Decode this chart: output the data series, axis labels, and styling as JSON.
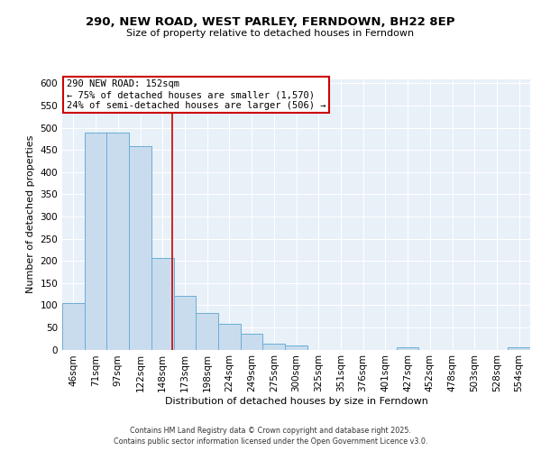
{
  "title": "290, NEW ROAD, WEST PARLEY, FERNDOWN, BH22 8EP",
  "subtitle": "Size of property relative to detached houses in Ferndown",
  "xlabel": "Distribution of detached houses by size in Ferndown",
  "ylabel": "Number of detached properties",
  "categories": [
    "46sqm",
    "71sqm",
    "97sqm",
    "122sqm",
    "148sqm",
    "173sqm",
    "198sqm",
    "224sqm",
    "249sqm",
    "275sqm",
    "300sqm",
    "325sqm",
    "351sqm",
    "376sqm",
    "401sqm",
    "427sqm",
    "452sqm",
    "478sqm",
    "503sqm",
    "528sqm",
    "554sqm"
  ],
  "values": [
    105,
    490,
    490,
    458,
    207,
    122,
    82,
    58,
    36,
    14,
    10,
    0,
    0,
    0,
    0,
    5,
    0,
    0,
    0,
    0,
    5
  ],
  "bar_color": "#c9dcee",
  "bar_edge_color": "#6aaed6",
  "vline_x": 4.45,
  "vline_color": "#cc0000",
  "annotation_text": "290 NEW ROAD: 152sqm\n← 75% of detached houses are smaller (1,570)\n24% of semi-detached houses are larger (506) →",
  "annotation_box_color": "#ffffff",
  "annotation_box_edge_color": "#cc0000",
  "ylim": [
    0,
    610
  ],
  "yticks": [
    0,
    50,
    100,
    150,
    200,
    250,
    300,
    350,
    400,
    450,
    500,
    550,
    600
  ],
  "footer_line1": "Contains HM Land Registry data © Crown copyright and database right 2025.",
  "footer_line2": "Contains public sector information licensed under the Open Government Licence v3.0.",
  "bg_color": "#e8f0f8",
  "fig_bg_color": "#ffffff",
  "title_fontsize": 9.5,
  "subtitle_fontsize": 8,
  "xlabel_fontsize": 8,
  "ylabel_fontsize": 8,
  "tick_fontsize": 7.5,
  "footer_fontsize": 5.8,
  "annotation_fontsize": 7.5
}
